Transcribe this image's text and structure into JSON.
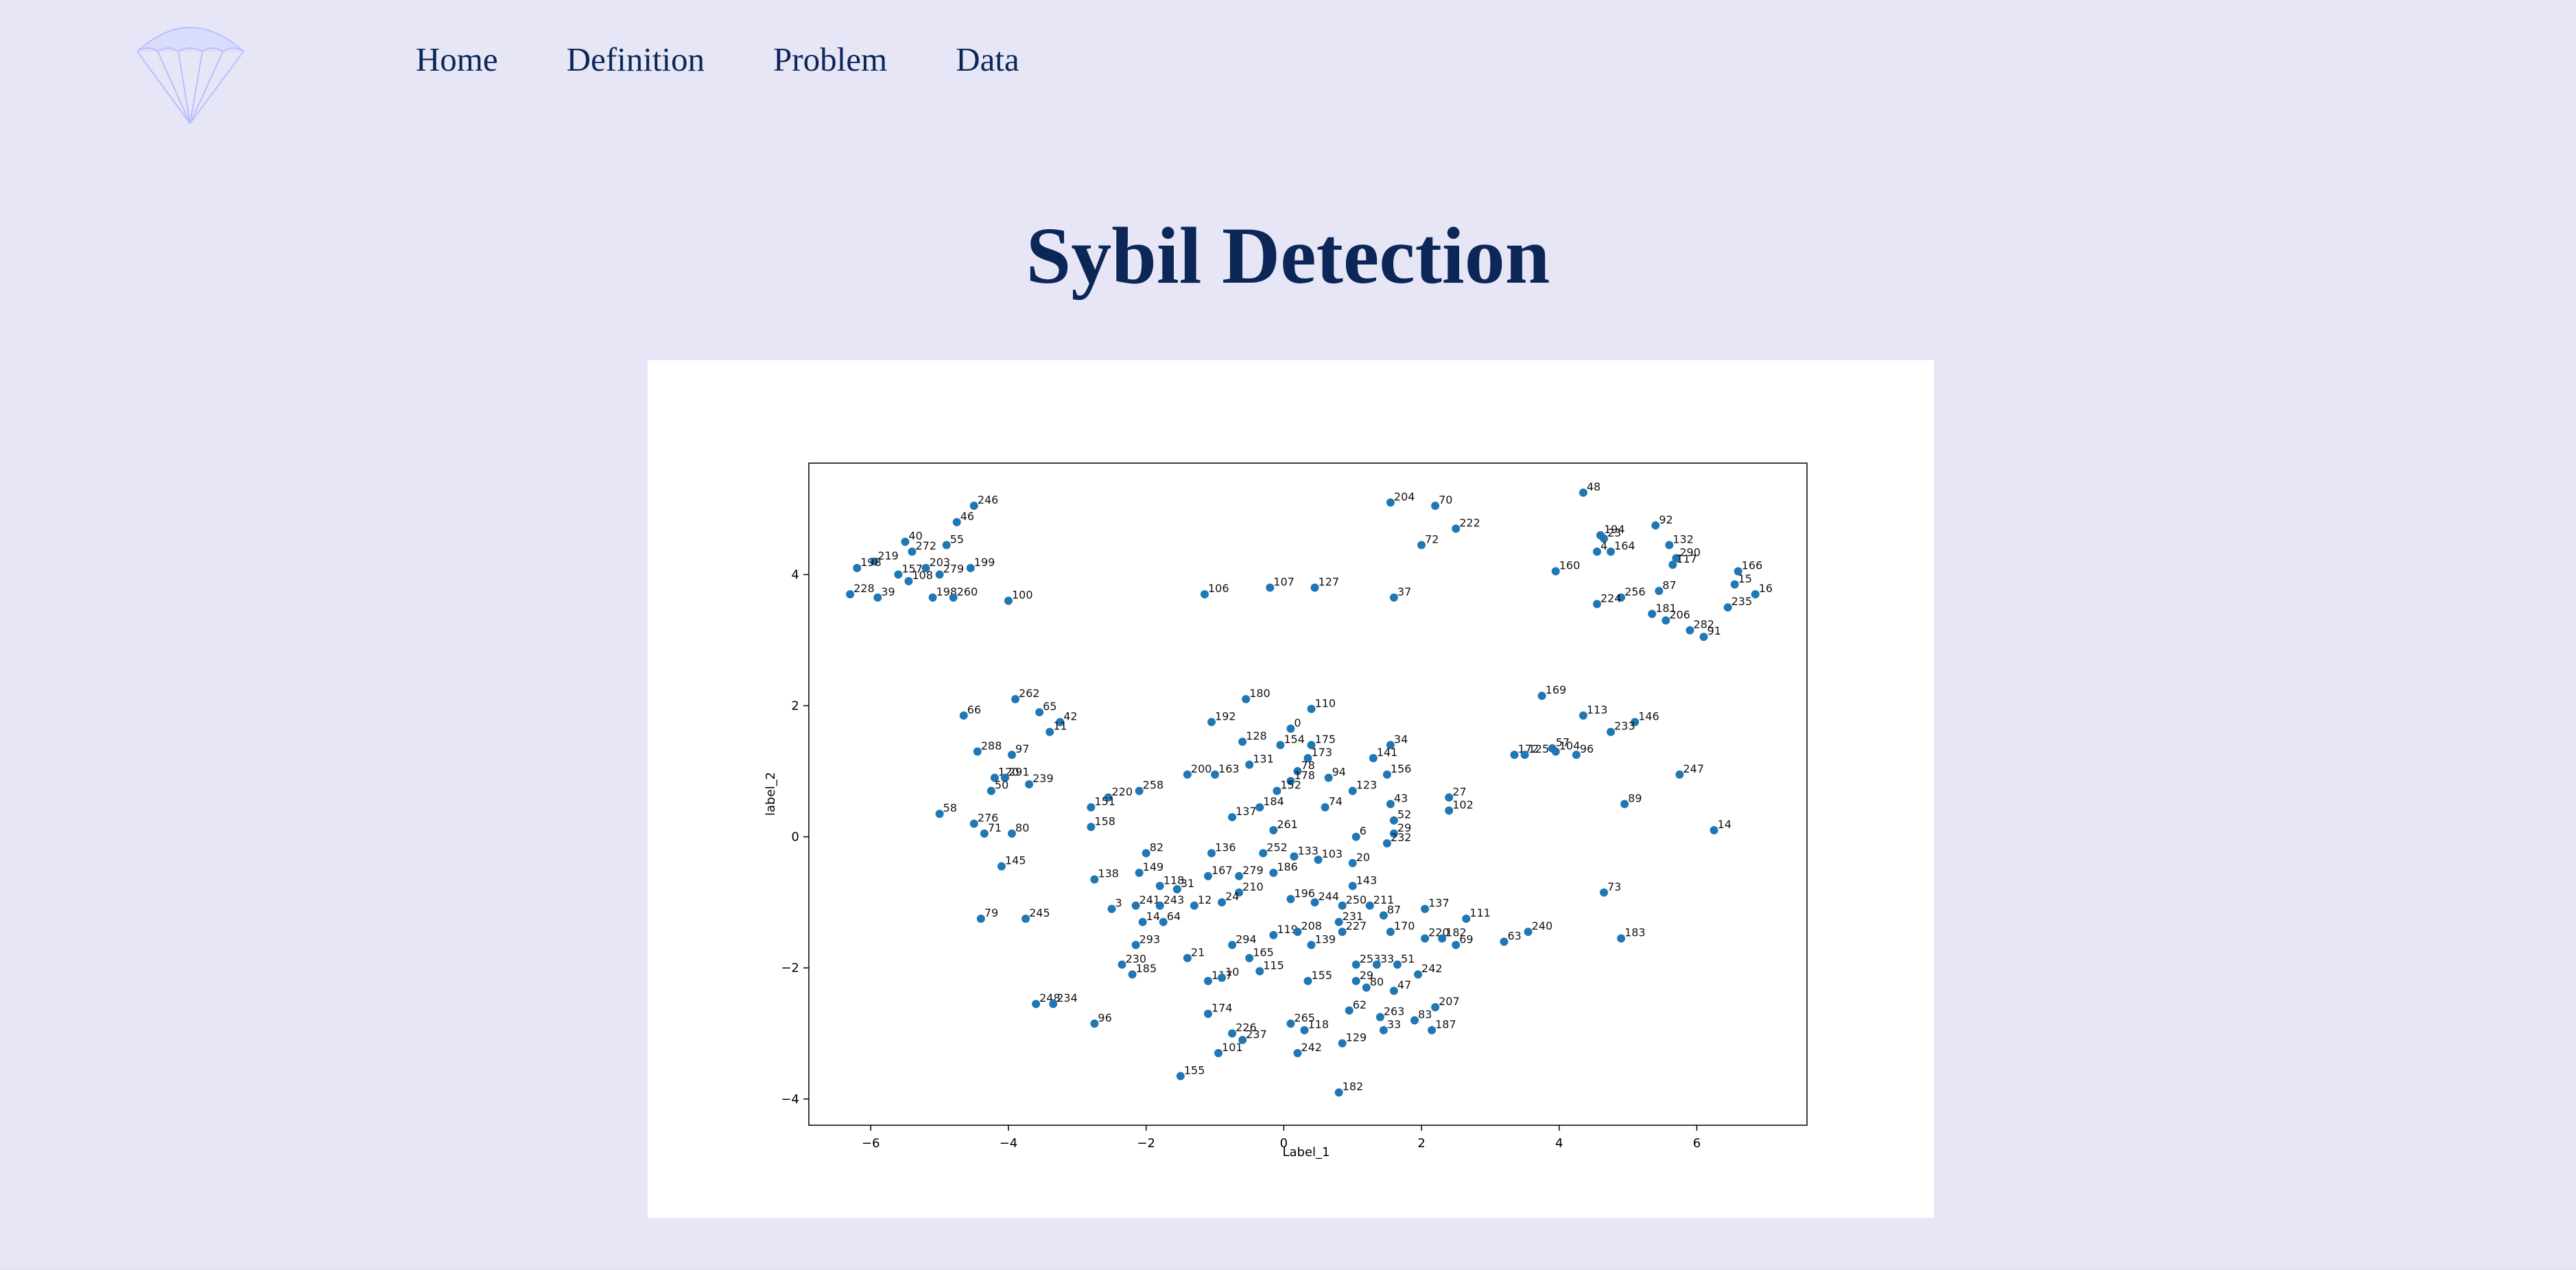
{
  "nav": {
    "items": [
      {
        "label": "Home"
      },
      {
        "label": "Definition"
      },
      {
        "label": "Problem"
      },
      {
        "label": "Data"
      }
    ]
  },
  "logo": {
    "icon": "parachute-icon",
    "color": "#b8c0ff"
  },
  "page": {
    "title": "Sybil Detection",
    "background": "#e6e6f7",
    "title_color": "#0c2757"
  },
  "chart_data": {
    "type": "scatter",
    "xlabel": "Label_1",
    "ylabel": "label_2",
    "xlim": [
      -6.9,
      7.6
    ],
    "ylim": [
      -4.4,
      5.7
    ],
    "xticks": [
      -6,
      -4,
      -2,
      0,
      2,
      4,
      6
    ],
    "yticks": [
      -4,
      -2,
      0,
      2,
      4
    ],
    "grid": false,
    "marker_color": "#1f77b4",
    "points": [
      {
        "label": "246",
        "x": -4.5,
        "y": 5.05
      },
      {
        "label": "46",
        "x": -4.75,
        "y": 4.8
      },
      {
        "label": "40",
        "x": -5.5,
        "y": 4.5
      },
      {
        "label": "55",
        "x": -4.9,
        "y": 4.45
      },
      {
        "label": "272",
        "x": -5.4,
        "y": 4.35
      },
      {
        "label": "219",
        "x": -5.95,
        "y": 4.2
      },
      {
        "label": "198",
        "x": -6.2,
        "y": 4.1
      },
      {
        "label": "203",
        "x": -5.2,
        "y": 4.1
      },
      {
        "label": "199",
        "x": -4.55,
        "y": 4.1
      },
      {
        "label": "157",
        "x": -5.6,
        "y": 4.0
      },
      {
        "label": "279",
        "x": -5.0,
        "y": 4.0
      },
      {
        "label": "108",
        "x": -5.45,
        "y": 3.9
      },
      {
        "label": "228",
        "x": -6.3,
        "y": 3.7
      },
      {
        "label": "39",
        "x": -5.9,
        "y": 3.65
      },
      {
        "label": "198",
        "x": -5.1,
        "y": 3.65
      },
      {
        "label": "260",
        "x": -4.8,
        "y": 3.65
      },
      {
        "label": "100",
        "x": -4.0,
        "y": 3.6
      },
      {
        "label": "106",
        "x": -1.15,
        "y": 3.7
      },
      {
        "label": "107",
        "x": -0.2,
        "y": 3.8
      },
      {
        "label": "127",
        "x": 0.45,
        "y": 3.8
      },
      {
        "label": "37",
        "x": 1.6,
        "y": 3.65
      },
      {
        "label": "204",
        "x": 1.55,
        "y": 5.1
      },
      {
        "label": "70",
        "x": 2.2,
        "y": 5.05
      },
      {
        "label": "222",
        "x": 2.5,
        "y": 4.7
      },
      {
        "label": "72",
        "x": 2.0,
        "y": 4.45
      },
      {
        "label": "48",
        "x": 4.35,
        "y": 5.25
      },
      {
        "label": "92",
        "x": 5.4,
        "y": 4.75
      },
      {
        "label": "194",
        "x": 4.6,
        "y": 4.6
      },
      {
        "label": "23",
        "x": 4.65,
        "y": 4.55
      },
      {
        "label": "132",
        "x": 5.6,
        "y": 4.45
      },
      {
        "label": "4",
        "x": 4.55,
        "y": 4.35
      },
      {
        "label": "164",
        "x": 4.75,
        "y": 4.35
      },
      {
        "label": "290",
        "x": 5.7,
        "y": 4.25
      },
      {
        "label": "117",
        "x": 5.65,
        "y": 4.15
      },
      {
        "label": "160",
        "x": 3.95,
        "y": 4.05
      },
      {
        "label": "166",
        "x": 6.6,
        "y": 4.05
      },
      {
        "label": "15",
        "x": 6.55,
        "y": 3.85
      },
      {
        "label": "16",
        "x": 6.85,
        "y": 3.7
      },
      {
        "label": "87",
        "x": 5.45,
        "y": 3.75
      },
      {
        "label": "256",
        "x": 4.9,
        "y": 3.65
      },
      {
        "label": "224",
        "x": 4.55,
        "y": 3.55
      },
      {
        "label": "235",
        "x": 6.45,
        "y": 3.5
      },
      {
        "label": "181",
        "x": 5.35,
        "y": 3.4
      },
      {
        "label": "206",
        "x": 5.55,
        "y": 3.3
      },
      {
        "label": "282",
        "x": 5.9,
        "y": 3.15
      },
      {
        "label": "91",
        "x": 6.1,
        "y": 3.05
      },
      {
        "label": "262",
        "x": -3.9,
        "y": 2.1
      },
      {
        "label": "66",
        "x": -4.65,
        "y": 1.85
      },
      {
        "label": "65",
        "x": -3.55,
        "y": 1.9
      },
      {
        "label": "42",
        "x": -3.25,
        "y": 1.75
      },
      {
        "label": "11",
        "x": -3.4,
        "y": 1.6
      },
      {
        "label": "288",
        "x": -4.45,
        "y": 1.3
      },
      {
        "label": "97",
        "x": -3.95,
        "y": 1.25
      },
      {
        "label": "120",
        "x": -4.2,
        "y": 0.9
      },
      {
        "label": "291",
        "x": -4.05,
        "y": 0.9
      },
      {
        "label": "239",
        "x": -3.7,
        "y": 0.8
      },
      {
        "label": "50",
        "x": -4.25,
        "y": 0.7
      },
      {
        "label": "58",
        "x": -5.0,
        "y": 0.35
      },
      {
        "label": "276",
        "x": -4.5,
        "y": 0.2
      },
      {
        "label": "71",
        "x": -4.35,
        "y": 0.05
      },
      {
        "label": "80",
        "x": -3.95,
        "y": 0.05
      },
      {
        "label": "145",
        "x": -4.1,
        "y": -0.45
      },
      {
        "label": "79",
        "x": -4.4,
        "y": -1.25
      },
      {
        "label": "245",
        "x": -3.75,
        "y": -1.25
      },
      {
        "label": "248",
        "x": -3.6,
        "y": -2.55
      },
      {
        "label": "234",
        "x": -3.35,
        "y": -2.55
      },
      {
        "label": "96",
        "x": -2.75,
        "y": -2.85
      },
      {
        "label": "220",
        "x": -2.55,
        "y": 0.6
      },
      {
        "label": "151",
        "x": -2.8,
        "y": 0.45
      },
      {
        "label": "258",
        "x": -2.1,
        "y": 0.7
      },
      {
        "label": "158",
        "x": -2.8,
        "y": 0.15
      },
      {
        "label": "138",
        "x": -2.75,
        "y": -0.65
      },
      {
        "label": "3",
        "x": -2.5,
        "y": -1.1
      },
      {
        "label": "230",
        "x": -2.35,
        "y": -1.95
      },
      {
        "label": "185",
        "x": -2.2,
        "y": -2.1
      },
      {
        "label": "293",
        "x": -2.15,
        "y": -1.65
      },
      {
        "label": "180",
        "x": -0.55,
        "y": 2.1
      },
      {
        "label": "192",
        "x": -1.05,
        "y": 1.75
      },
      {
        "label": "110",
        "x": 0.4,
        "y": 1.95
      },
      {
        "label": "0",
        "x": 0.1,
        "y": 1.65
      },
      {
        "label": "128",
        "x": -0.6,
        "y": 1.45
      },
      {
        "label": "154",
        "x": -0.05,
        "y": 1.4
      },
      {
        "label": "175",
        "x": 0.4,
        "y": 1.4
      },
      {
        "label": "34",
        "x": 1.55,
        "y": 1.4
      },
      {
        "label": "141",
        "x": 1.3,
        "y": 1.2
      },
      {
        "label": "173",
        "x": 0.35,
        "y": 1.2
      },
      {
        "label": "131",
        "x": -0.5,
        "y": 1.1
      },
      {
        "label": "200",
        "x": -1.4,
        "y": 0.95
      },
      {
        "label": "163",
        "x": -1.0,
        "y": 0.95
      },
      {
        "label": "78",
        "x": 0.2,
        "y": 1.0
      },
      {
        "label": "94",
        "x": 0.65,
        "y": 0.9
      },
      {
        "label": "156",
        "x": 1.5,
        "y": 0.95
      },
      {
        "label": "178",
        "x": 0.1,
        "y": 0.85
      },
      {
        "label": "152",
        "x": -0.1,
        "y": 0.7
      },
      {
        "label": "123",
        "x": 1.0,
        "y": 0.7
      },
      {
        "label": "74",
        "x": 0.6,
        "y": 0.45
      },
      {
        "label": "184",
        "x": -0.35,
        "y": 0.45
      },
      {
        "label": "43",
        "x": 1.55,
        "y": 0.5
      },
      {
        "label": "27",
        "x": 2.4,
        "y": 0.6
      },
      {
        "label": "102",
        "x": 2.4,
        "y": 0.4
      },
      {
        "label": "52",
        "x": 1.6,
        "y": 0.25
      },
      {
        "label": "137",
        "x": -0.75,
        "y": 0.3
      },
      {
        "label": "261",
        "x": -0.15,
        "y": 0.1
      },
      {
        "label": "29",
        "x": 1.6,
        "y": 0.05
      },
      {
        "label": "6",
        "x": 1.05,
        "y": 0.0
      },
      {
        "label": "232",
        "x": 1.5,
        "y": -0.1
      },
      {
        "label": "82",
        "x": -2.0,
        "y": -0.25
      },
      {
        "label": "136",
        "x": -1.05,
        "y": -0.25
      },
      {
        "label": "252",
        "x": -0.3,
        "y": -0.25
      },
      {
        "label": "133",
        "x": 0.15,
        "y": -0.3
      },
      {
        "label": "103",
        "x": 0.5,
        "y": -0.35
      },
      {
        "label": "20",
        "x": 1.0,
        "y": -0.4
      },
      {
        "label": "149",
        "x": -2.1,
        "y": -0.55
      },
      {
        "label": "167",
        "x": -1.1,
        "y": -0.6
      },
      {
        "label": "279",
        "x": -0.65,
        "y": -0.6
      },
      {
        "label": "186",
        "x": -0.15,
        "y": -0.55
      },
      {
        "label": "143",
        "x": 1.0,
        "y": -0.75
      },
      {
        "label": "118",
        "x": -1.8,
        "y": -0.75
      },
      {
        "label": "31",
        "x": -1.55,
        "y": -0.8
      },
      {
        "label": "210",
        "x": -0.65,
        "y": -0.85
      },
      {
        "label": "196",
        "x": 0.1,
        "y": -0.95
      },
      {
        "label": "244",
        "x": 0.45,
        "y": -1.0
      },
      {
        "label": "250",
        "x": 0.85,
        "y": -1.05
      },
      {
        "label": "211",
        "x": 1.25,
        "y": -1.05
      },
      {
        "label": "137",
        "x": 2.05,
        "y": -1.1
      },
      {
        "label": "111",
        "x": 2.65,
        "y": -1.25
      },
      {
        "label": "241",
        "x": -2.15,
        "y": -1.05
      },
      {
        "label": "243",
        "x": -1.8,
        "y": -1.05
      },
      {
        "label": "12",
        "x": -1.3,
        "y": -1.05
      },
      {
        "label": "24",
        "x": -0.9,
        "y": -1.0
      },
      {
        "label": "64",
        "x": -1.75,
        "y": -1.3
      },
      {
        "label": "14",
        "x": -2.05,
        "y": -1.3
      },
      {
        "label": "231",
        "x": 0.8,
        "y": -1.3
      },
      {
        "label": "87",
        "x": 1.45,
        "y": -1.2
      },
      {
        "label": "170",
        "x": 1.55,
        "y": -1.45
      },
      {
        "label": "220",
        "x": 2.05,
        "y": -1.55
      },
      {
        "label": "182",
        "x": 2.3,
        "y": -1.55
      },
      {
        "label": "69",
        "x": 2.5,
        "y": -1.65
      },
      {
        "label": "227",
        "x": 0.85,
        "y": -1.45
      },
      {
        "label": "294",
        "x": -0.75,
        "y": -1.65
      },
      {
        "label": "119",
        "x": -0.15,
        "y": -1.5
      },
      {
        "label": "208",
        "x": 0.2,
        "y": -1.45
      },
      {
        "label": "139",
        "x": 0.4,
        "y": -1.65
      },
      {
        "label": "21",
        "x": -1.4,
        "y": -1.85
      },
      {
        "label": "165",
        "x": -0.5,
        "y": -1.85
      },
      {
        "label": "253",
        "x": 1.05,
        "y": -1.95
      },
      {
        "label": "33",
        "x": 1.35,
        "y": -1.95
      },
      {
        "label": "51",
        "x": 1.65,
        "y": -1.95
      },
      {
        "label": "242",
        "x": 1.95,
        "y": -2.1
      },
      {
        "label": "117",
        "x": -1.1,
        "y": -2.2
      },
      {
        "label": "10",
        "x": -0.9,
        "y": -2.15
      },
      {
        "label": "115",
        "x": -0.35,
        "y": -2.05
      },
      {
        "label": "155",
        "x": 0.35,
        "y": -2.2
      },
      {
        "label": "29",
        "x": 1.05,
        "y": -2.2
      },
      {
        "label": "80",
        "x": 1.2,
        "y": -2.3
      },
      {
        "label": "47",
        "x": 1.6,
        "y": -2.35
      },
      {
        "label": "174",
        "x": -1.1,
        "y": -2.7
      },
      {
        "label": "62",
        "x": 0.95,
        "y": -2.65
      },
      {
        "label": "207",
        "x": 2.2,
        "y": -2.6
      },
      {
        "label": "263",
        "x": 1.4,
        "y": -2.75
      },
      {
        "label": "83",
        "x": 1.9,
        "y": -2.8
      },
      {
        "label": "265",
        "x": 0.1,
        "y": -2.85
      },
      {
        "label": "118",
        "x": 0.3,
        "y": -2.95
      },
      {
        "label": "33",
        "x": 1.45,
        "y": -2.95
      },
      {
        "label": "187",
        "x": 2.15,
        "y": -2.95
      },
      {
        "label": "226",
        "x": -0.75,
        "y": -3.0
      },
      {
        "label": "237",
        "x": -0.6,
        "y": -3.1
      },
      {
        "label": "129",
        "x": 0.85,
        "y": -3.15
      },
      {
        "label": "101",
        "x": -0.95,
        "y": -3.3
      },
      {
        "label": "242",
        "x": 0.2,
        "y": -3.3
      },
      {
        "label": "155",
        "x": -1.5,
        "y": -3.65
      },
      {
        "label": "182",
        "x": 0.8,
        "y": -3.9
      },
      {
        "label": "169",
        "x": 3.75,
        "y": 2.15
      },
      {
        "label": "113",
        "x": 4.35,
        "y": 1.85
      },
      {
        "label": "146",
        "x": 5.1,
        "y": 1.75
      },
      {
        "label": "233",
        "x": 4.75,
        "y": 1.6
      },
      {
        "label": "172",
        "x": 3.35,
        "y": 1.25
      },
      {
        "label": "125",
        "x": 3.5,
        "y": 1.25
      },
      {
        "label": "57",
        "x": 3.9,
        "y": 1.35
      },
      {
        "label": "104",
        "x": 3.95,
        "y": 1.3
      },
      {
        "label": "96",
        "x": 4.25,
        "y": 1.25
      },
      {
        "label": "247",
        "x": 5.75,
        "y": 0.95
      },
      {
        "label": "89",
        "x": 4.95,
        "y": 0.5
      },
      {
        "label": "14",
        "x": 6.25,
        "y": 0.1
      },
      {
        "label": "73",
        "x": 4.65,
        "y": -0.85
      },
      {
        "label": "240",
        "x": 3.55,
        "y": -1.45
      },
      {
        "label": "63",
        "x": 3.2,
        "y": -1.6
      },
      {
        "label": "183",
        "x": 4.9,
        "y": -1.55
      }
    ]
  }
}
